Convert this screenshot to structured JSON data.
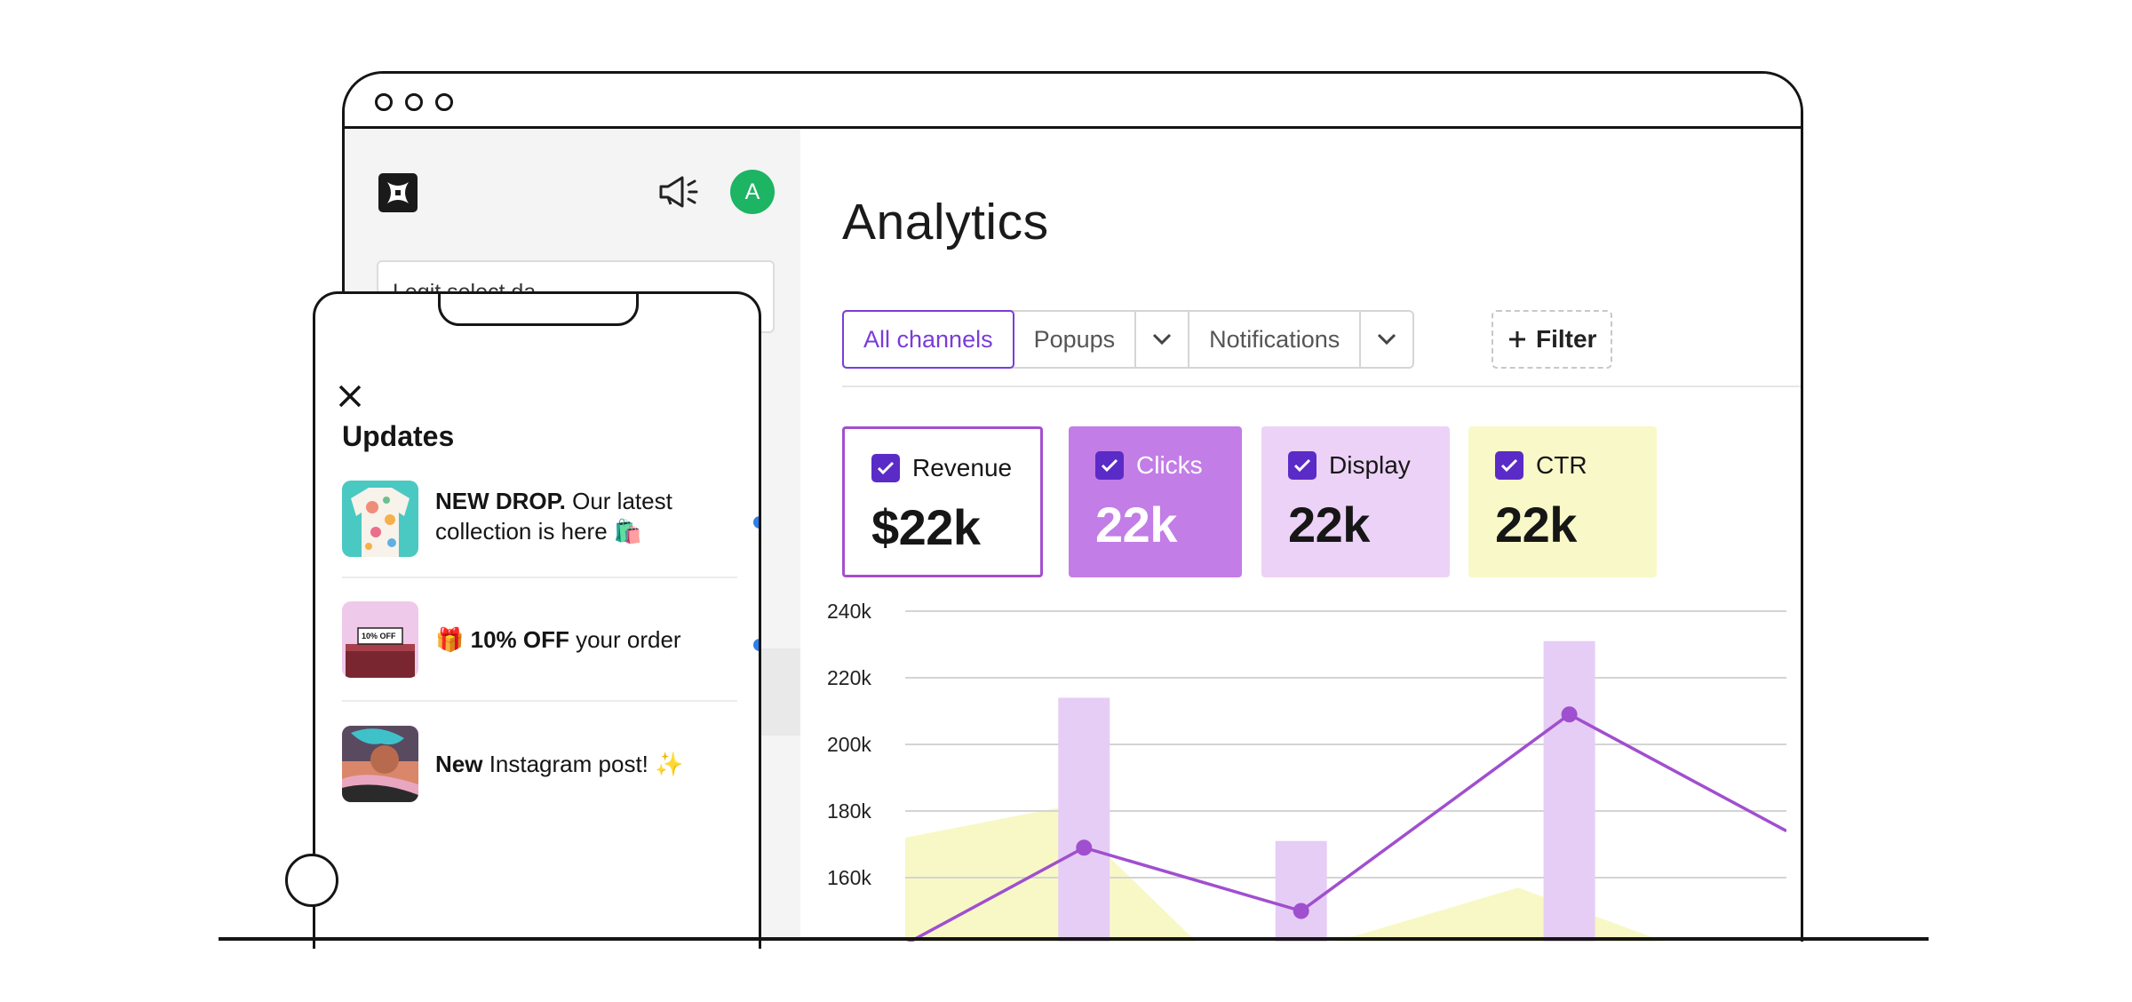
{
  "app": {
    "title": "Analytics",
    "avatar_initial": "A",
    "sidebar_search_text": "Legit select da",
    "accent_color": "#7a3cd9"
  },
  "tabs": [
    {
      "label": "All channels",
      "active": true
    },
    {
      "label": "Popups",
      "has_dropdown": true
    },
    {
      "label": "Notifications",
      "has_dropdown": true
    }
  ],
  "filter_label": "Filter",
  "metrics": [
    {
      "label": "Revenue",
      "value": "$22k",
      "checked": true,
      "color": "#ffffff"
    },
    {
      "label": "Clicks",
      "value": "22k",
      "checked": true,
      "color": "#c27de6"
    },
    {
      "label": "Display",
      "value": "22k",
      "checked": true,
      "color": "#ecd2f6"
    },
    {
      "label": "CTR",
      "value": "22k",
      "checked": true,
      "color": "#f8f8c8"
    }
  ],
  "chart_data": {
    "type": "bar",
    "y_tick_labels": [
      "240k",
      "220k",
      "200k",
      "180k",
      "160k"
    ],
    "ylim": [
      140000,
      240000
    ],
    "grid": true,
    "bar_series": {
      "color": "#e6cdf5",
      "x": [
        1.4,
        3.1,
        5.2
      ],
      "values": [
        214000,
        171000,
        231000
      ]
    },
    "line_series": {
      "color": "#a04fcf",
      "x": [
        0,
        1.4,
        3.1,
        5.2,
        6.9
      ],
      "values": [
        140000,
        169000,
        150000,
        209000,
        174000
      ]
    },
    "area_series": {
      "color": "#f8f8c6",
      "x": [
        0,
        1.2,
        2.3,
        3.3,
        4.8,
        6.0,
        6.9
      ],
      "values": [
        172000,
        181000,
        140000,
        140000,
        157000,
        140000,
        140000
      ]
    }
  },
  "phone": {
    "title": "Updates",
    "updates": [
      {
        "bold": "NEW DROP.",
        "text": " Our latest collection is here 🛍️",
        "unread": true,
        "thumb": "floral-shirt"
      },
      {
        "prefix": "🎁 ",
        "bold": "10% OFF",
        "text": " your order",
        "unread": true,
        "thumb": "sale-box",
        "thumb_tag": "10% OFF"
      },
      {
        "bold": "New",
        "text": " Instagram post! ✨",
        "unread": false,
        "thumb": "portrait"
      }
    ]
  },
  "icons": {
    "logo": "brand-logo-icon",
    "announcement": "megaphone-icon",
    "dropdown": "chevron-down-icon",
    "add": "plus-icon",
    "close": "close-icon",
    "check": "checkbox-checked-icon"
  }
}
